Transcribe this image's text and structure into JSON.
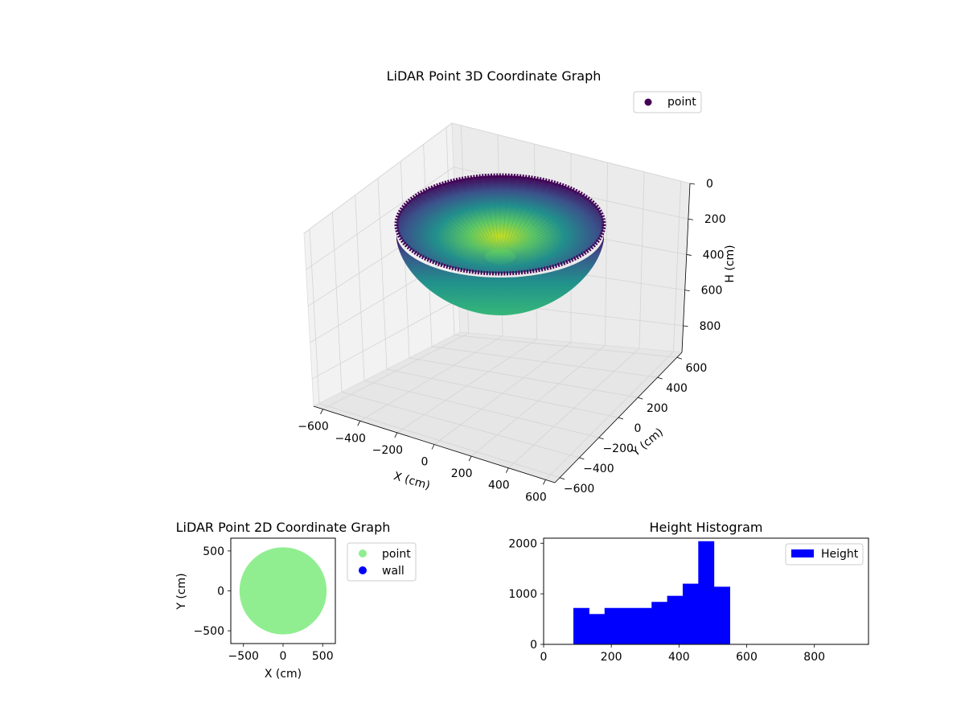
{
  "figure": {
    "background": "#ffffff"
  },
  "chart_data": [
    {
      "id": "plot3d",
      "type": "scatter",
      "title": "LiDAR Point 3D Coordinate Graph",
      "xlabel": "X (cm)",
      "ylabel": "Y (cm)",
      "zlabel": "H (cm)",
      "xticks": [
        "−600",
        "−400",
        "−200",
        "0",
        "200",
        "400",
        "600"
      ],
      "yticks": [
        "−600",
        "−400",
        "−200",
        "0",
        "200",
        "400",
        "600"
      ],
      "zticks": [
        "0",
        "200",
        "400",
        "600",
        "800"
      ],
      "xlim": [
        -650,
        650
      ],
      "ylim": [
        -650,
        650
      ],
      "zlim": [
        950,
        0
      ],
      "zaxis_inverted": true,
      "grid": true,
      "legend": {
        "position": "top-right",
        "entries": [
          {
            "label": "point",
            "color": "#440154"
          }
        ]
      },
      "surface": {
        "shape": "hemispherical bowl",
        "radius_cm": 550,
        "depth_cm": 550,
        "colormap": "viridis"
      }
    },
    {
      "id": "plot2d",
      "type": "scatter",
      "title": "LiDAR Point 2D Coordinate Graph",
      "xlabel": "X (cm)",
      "ylabel": "Y (cm)",
      "xticks": [
        "−500",
        "0",
        "500"
      ],
      "yticks": [
        "−500",
        "0",
        "500"
      ],
      "xlim": [
        -660,
        660
      ],
      "ylim": [
        -660,
        660
      ],
      "disc_radius_cm": 550,
      "legend": {
        "position": "outside-right",
        "entries": [
          {
            "label": "point",
            "color": "#90ee90"
          },
          {
            "label": "wall",
            "color": "#0000ff"
          }
        ]
      }
    },
    {
      "id": "hist",
      "type": "bar",
      "title": "Height Histogram",
      "xlim": [
        0,
        960
      ],
      "ylim": [
        0,
        2100
      ],
      "xticks": [
        "0",
        "200",
        "400",
        "600",
        "800"
      ],
      "yticks": [
        "0",
        "1000",
        "2000"
      ],
      "color": "#0000ff",
      "legend": {
        "position": "top-right",
        "entries": [
          {
            "label": "Height",
            "color": "#0000ff"
          }
        ]
      },
      "bins": [
        {
          "start": 88,
          "end": 134,
          "count": 720
        },
        {
          "start": 134,
          "end": 180,
          "count": 600
        },
        {
          "start": 180,
          "end": 226,
          "count": 720
        },
        {
          "start": 226,
          "end": 273,
          "count": 720
        },
        {
          "start": 273,
          "end": 319,
          "count": 720
        },
        {
          "start": 319,
          "end": 365,
          "count": 840
        },
        {
          "start": 365,
          "end": 411,
          "count": 960
        },
        {
          "start": 411,
          "end": 457,
          "count": 1200
        },
        {
          "start": 457,
          "end": 503,
          "count": 2040
        },
        {
          "start": 503,
          "end": 550,
          "count": 1140
        }
      ]
    }
  ]
}
